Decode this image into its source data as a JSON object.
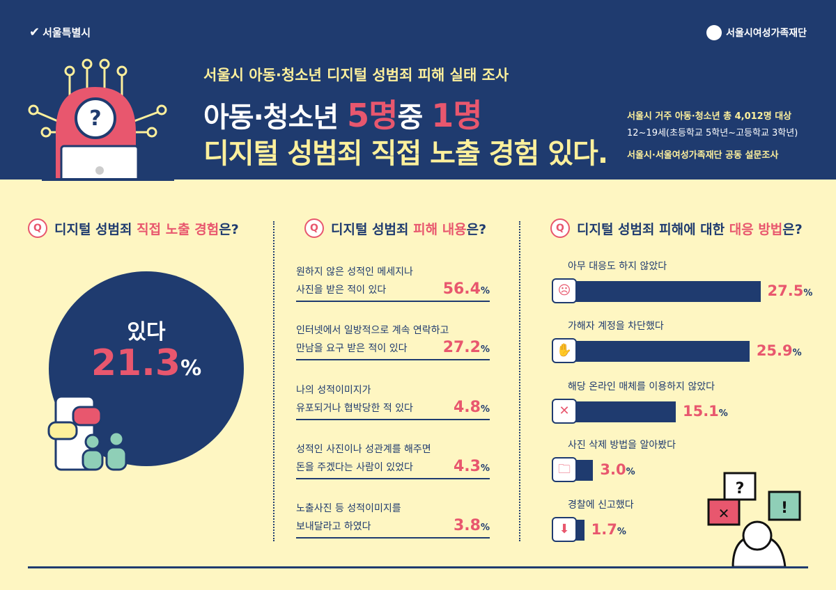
{
  "header": {
    "left_logo": "서울특별시",
    "right_logo": "서울시여성가족재단",
    "subtitle": "서울시 아동·청소년 디지털 성범죄 피해 실태 조사",
    "headline_a": "아동·청소년 ",
    "headline_b": "5명",
    "headline_c": "중 ",
    "headline_d": "1명",
    "headline2": "디지털 성범죄 직접 노출 경험 있다.",
    "info1": "서울시 거주 아동·청소년 총 4,012명 대상",
    "info2": "12~19세(초등학교 5학년~고등학교 3학년)",
    "info3": "서울시·서울여성가족재단 공동 설문조사"
  },
  "q_icon": "Q",
  "exposure": {
    "q_a": "디지털 성범죄 ",
    "q_b": "직접 노출 경험",
    "q_c": "은?",
    "label": "있다",
    "value": "21.3",
    "unit": "%"
  },
  "content": {
    "q_a": "디지털 성범죄 ",
    "q_b": "피해 내용",
    "q_c": "은?",
    "items": [
      {
        "line1": "원하지 않은 성적인 메세지나",
        "line2": "사진을 받은 적이 있다",
        "value": "56.4"
      },
      {
        "line1": "인터넷에서 일방적으로 계속 연락하고",
        "line2": "만남을 요구 받은 적이 있다",
        "value": "27.2"
      },
      {
        "line1": "나의 성적이미지가",
        "line2": "유포되거나 협박당한 적 있다",
        "value": "4.8"
      },
      {
        "line1": "성적인 사진이나 성관계를 해주면",
        "line2": "돈을 주겠다는 사람이 있었다",
        "value": "4.3"
      },
      {
        "line1": "노출사진 등 성적이미지를",
        "line2": "보내달라고 하였다",
        "value": "3.8"
      }
    ]
  },
  "response": {
    "q_a": "디지털 성범죄 피해에 대한 ",
    "q_b": "대응 방법",
    "q_c": "은?"
  },
  "chart_data": {
    "type": "bar",
    "orientation": "horizontal",
    "title": "디지털 성범죄 피해에 대한 대응 방법은?",
    "categories": [
      "아무 대응도 하지 않았다",
      "가해자 계정을 차단했다",
      "해당 온라인 매체를 이용하지 않았다",
      "사진 삭제 방법을 알아봤다",
      "경찰에 신고했다"
    ],
    "values": [
      27.5,
      25.9,
      15.1,
      3.0,
      1.7
    ],
    "labels": [
      "27.5",
      "25.9",
      "15.1",
      "3.0",
      "1.7"
    ],
    "unit": "%",
    "colors": {
      "bar": "#1f3b6f",
      "value": "#e8576e"
    }
  },
  "colors": {
    "navy": "#1f3b6f",
    "pink": "#e8576e",
    "yellow": "#fdf09c",
    "bg": "#fef6c2"
  }
}
